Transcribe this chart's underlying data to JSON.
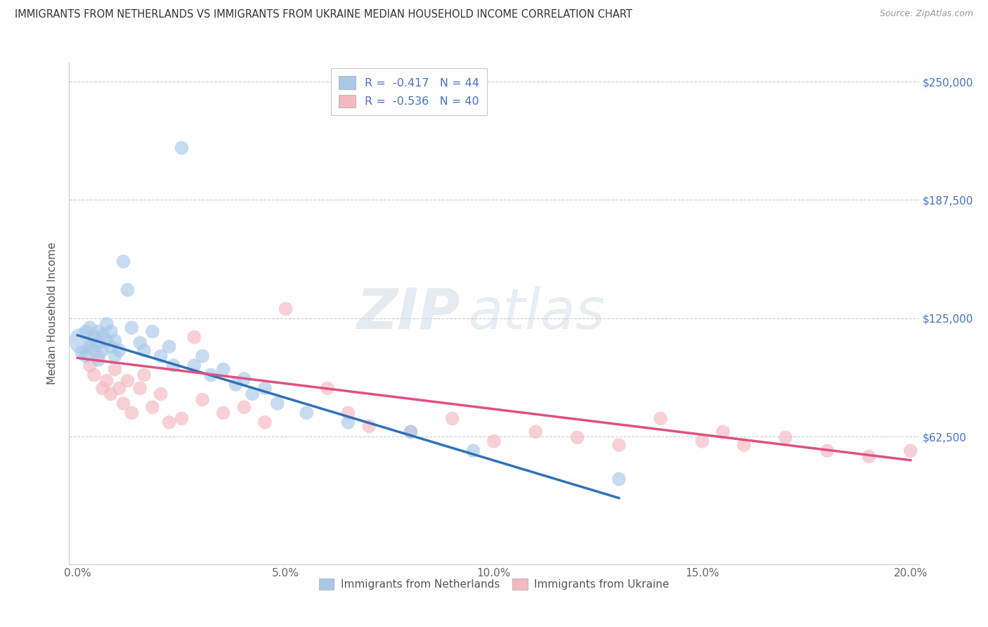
{
  "title": "IMMIGRANTS FROM NETHERLANDS VS IMMIGRANTS FROM UKRAINE MEDIAN HOUSEHOLD INCOME CORRELATION CHART",
  "source": "Source: ZipAtlas.com",
  "ylabel": "Median Household Income",
  "xlim": [
    -0.002,
    0.202
  ],
  "ylim": [
    -5000,
    260000
  ],
  "xticks": [
    0.0,
    0.05,
    0.1,
    0.15,
    0.2
  ],
  "xticklabels": [
    "0.0%",
    "5.0%",
    "10.0%",
    "15.0%",
    "20.0%"
  ],
  "ytick_vals": [
    0,
    62500,
    125000,
    187500,
    250000
  ],
  "ytick_labels_right": [
    "",
    "$62,500",
    "$125,000",
    "$187,500",
    "$250,000"
  ],
  "nl_color": "#a8c8e8",
  "ua_color": "#f4b8c0",
  "nl_line_color": "#3070b8",
  "ua_line_color": "#e05080",
  "legend_R_nl": "-0.417",
  "legend_N_nl": "44",
  "legend_R_ua": "-0.536",
  "legend_N_ua": "40",
  "watermark": "ZIPatlas",
  "background_color": "#ffffff",
  "nl_line_x0": 0.0,
  "nl_line_y0": 116000,
  "nl_line_x1": 0.13,
  "nl_line_y1": 30000,
  "ua_line_x0": 0.0,
  "ua_line_y0": 104000,
  "ua_line_x1": 0.2,
  "ua_line_y1": 50000,
  "nl_x": [
    0.001,
    0.001,
    0.002,
    0.002,
    0.003,
    0.003,
    0.004,
    0.004,
    0.005,
    0.005,
    0.005,
    0.006,
    0.006,
    0.007,
    0.007,
    0.008,
    0.008,
    0.009,
    0.009,
    0.01,
    0.011,
    0.012,
    0.013,
    0.015,
    0.016,
    0.018,
    0.02,
    0.022,
    0.023,
    0.025,
    0.028,
    0.03,
    0.032,
    0.035,
    0.038,
    0.04,
    0.042,
    0.045,
    0.048,
    0.055,
    0.065,
    0.08,
    0.095,
    0.13
  ],
  "nl_y": [
    113000,
    107000,
    118000,
    105000,
    120000,
    110000,
    115000,
    108000,
    112000,
    118000,
    103000,
    116000,
    108000,
    122000,
    113000,
    110000,
    118000,
    105000,
    113000,
    108000,
    155000,
    140000,
    120000,
    112000,
    108000,
    118000,
    105000,
    110000,
    100000,
    215000,
    100000,
    105000,
    95000,
    98000,
    90000,
    93000,
    85000,
    88000,
    80000,
    75000,
    70000,
    65000,
    55000,
    40000
  ],
  "nl_sizes": [
    700,
    200,
    200,
    200,
    200,
    200,
    200,
    200,
    200,
    200,
    200,
    200,
    200,
    200,
    200,
    200,
    200,
    200,
    200,
    200,
    200,
    200,
    200,
    200,
    200,
    200,
    200,
    200,
    200,
    200,
    200,
    200,
    200,
    200,
    200,
    200,
    200,
    200,
    200,
    200,
    200,
    200,
    200,
    200
  ],
  "ua_x": [
    0.003,
    0.004,
    0.005,
    0.006,
    0.007,
    0.008,
    0.009,
    0.01,
    0.011,
    0.012,
    0.013,
    0.015,
    0.016,
    0.018,
    0.02,
    0.022,
    0.025,
    0.028,
    0.03,
    0.035,
    0.04,
    0.045,
    0.05,
    0.06,
    0.065,
    0.07,
    0.08,
    0.09,
    0.1,
    0.11,
    0.12,
    0.13,
    0.14,
    0.15,
    0.155,
    0.16,
    0.17,
    0.18,
    0.19,
    0.2
  ],
  "ua_y": [
    100000,
    95000,
    105000,
    88000,
    92000,
    85000,
    98000,
    88000,
    80000,
    92000,
    75000,
    88000,
    95000,
    78000,
    85000,
    70000,
    72000,
    115000,
    82000,
    75000,
    78000,
    70000,
    130000,
    88000,
    75000,
    68000,
    65000,
    72000,
    60000,
    65000,
    62000,
    58000,
    72000,
    60000,
    65000,
    58000,
    62000,
    55000,
    52000,
    55000
  ],
  "ua_sizes": [
    200,
    200,
    200,
    200,
    200,
    200,
    200,
    200,
    200,
    200,
    200,
    200,
    200,
    200,
    200,
    200,
    200,
    200,
    200,
    200,
    200,
    200,
    200,
    200,
    200,
    200,
    200,
    200,
    200,
    200,
    200,
    200,
    200,
    200,
    200,
    200,
    200,
    200,
    200,
    200
  ]
}
